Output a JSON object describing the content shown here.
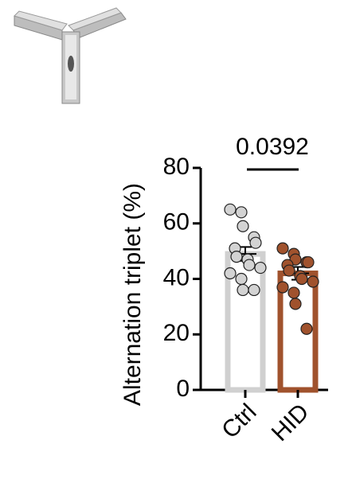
{
  "chart_data": {
    "type": "bar",
    "y_label": "Alternation triplet (%)",
    "categories": [
      "Ctrl",
      "HID"
    ],
    "values": [
      49,
      42
    ],
    "errors": [
      2.5,
      2.3
    ],
    "colors": [
      "#d0d0d0",
      "#a0522d"
    ],
    "point_colors": [
      "#d3d3d3",
      "#a0522d"
    ],
    "points": [
      [
        65,
        64,
        59,
        55,
        53,
        51,
        48,
        47,
        45,
        44,
        42,
        40,
        36,
        36
      ],
      [
        51,
        49,
        47,
        46,
        46,
        45,
        43,
        41,
        40,
        39,
        37,
        35,
        31,
        22
      ]
    ],
    "annotation": "0.0392",
    "ylim": [
      0,
      80
    ],
    "yticks": [
      0,
      20,
      40,
      60,
      80
    ]
  }
}
